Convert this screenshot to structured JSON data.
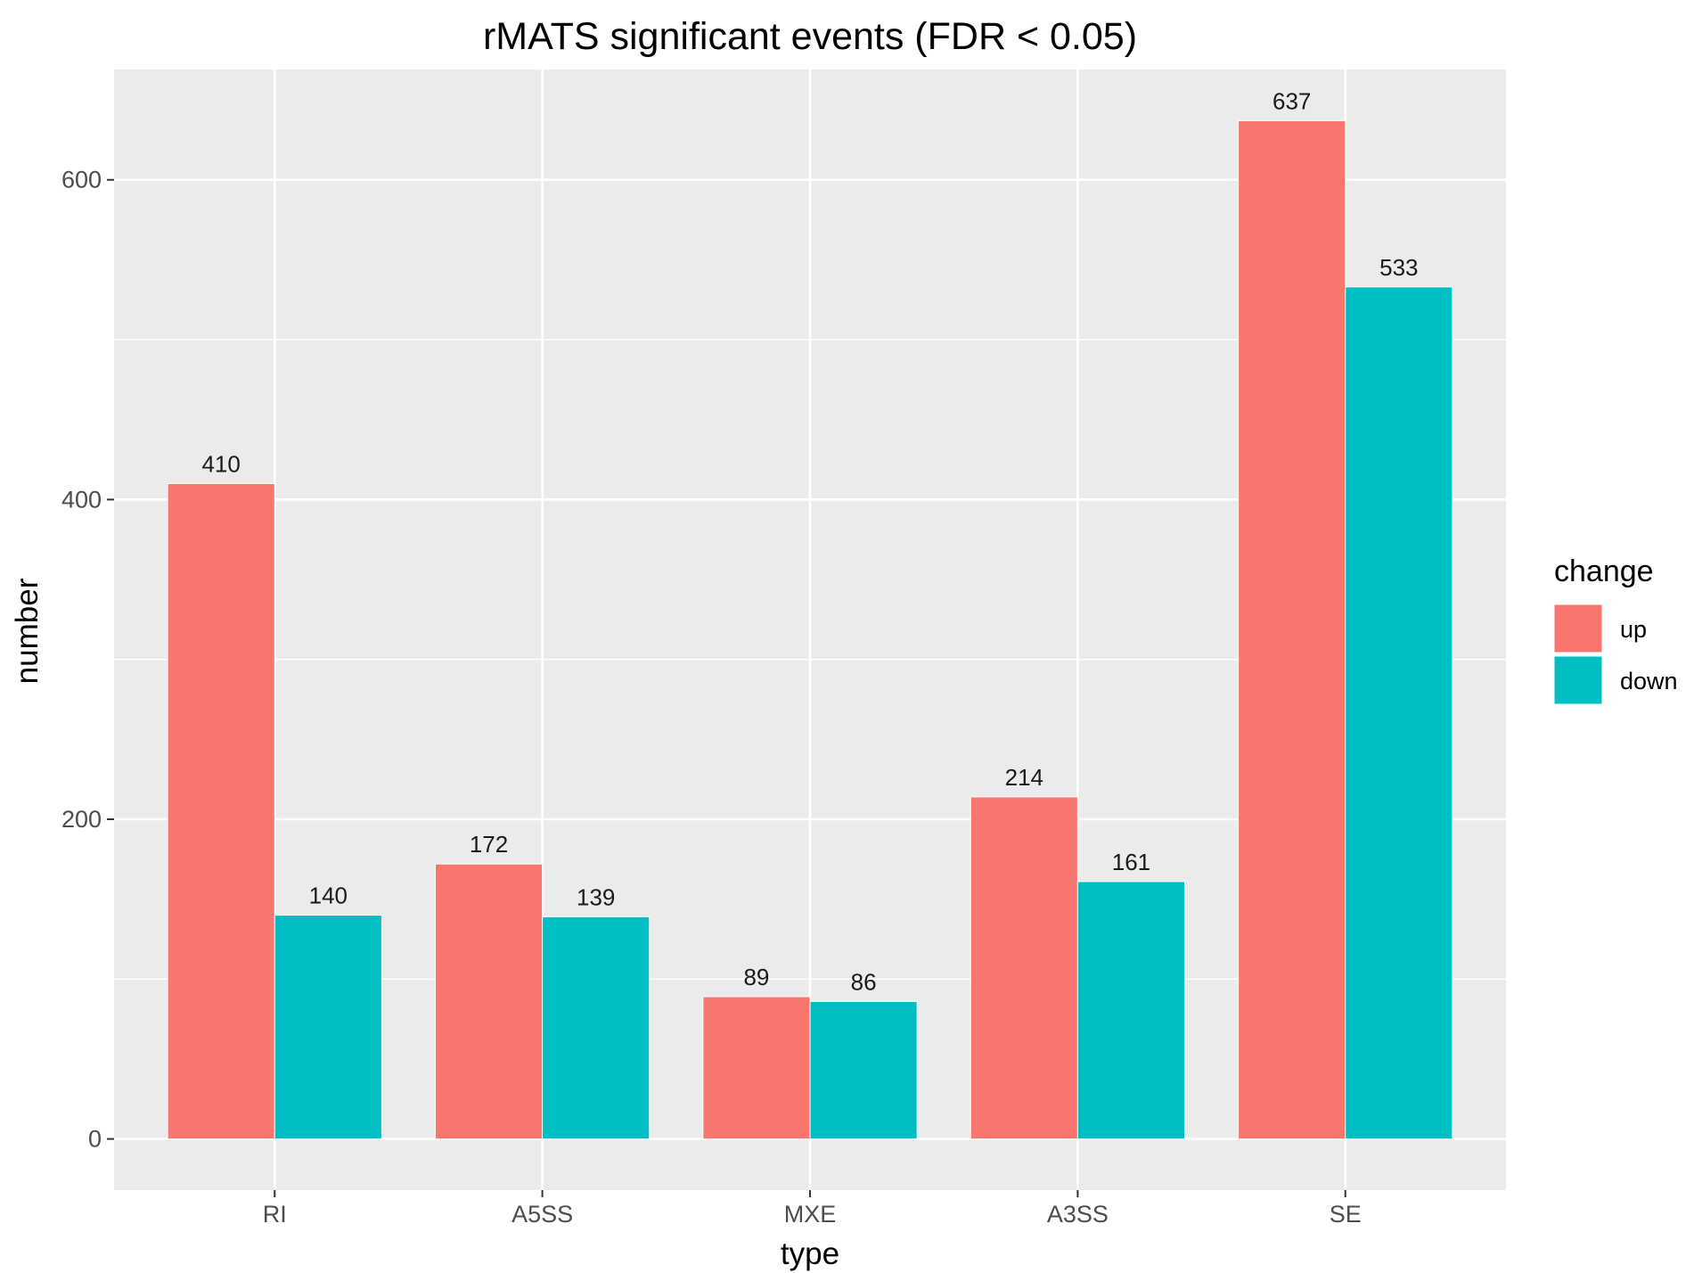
{
  "chart_data": {
    "type": "bar",
    "title": "rMATS significant events (FDR < 0.05)",
    "xlabel": "type",
    "ylabel": "number",
    "categories": [
      "RI",
      "A5SS",
      "MXE",
      "A3SS",
      "SE"
    ],
    "series": [
      {
        "name": "up",
        "color": "#F8766D",
        "values": [
          410,
          172,
          89,
          214,
          637
        ]
      },
      {
        "name": "down",
        "color": "#00BFC4",
        "values": [
          140,
          139,
          86,
          161,
          533
        ]
      }
    ],
    "ylim": [
      -32,
      669
    ],
    "yticks": [
      0,
      200,
      400,
      600
    ],
    "grid": true,
    "legend": {
      "title": "change",
      "position": "right"
    },
    "panel_background": "#EBEBEB",
    "grid_color": "#FFFFFF"
  }
}
